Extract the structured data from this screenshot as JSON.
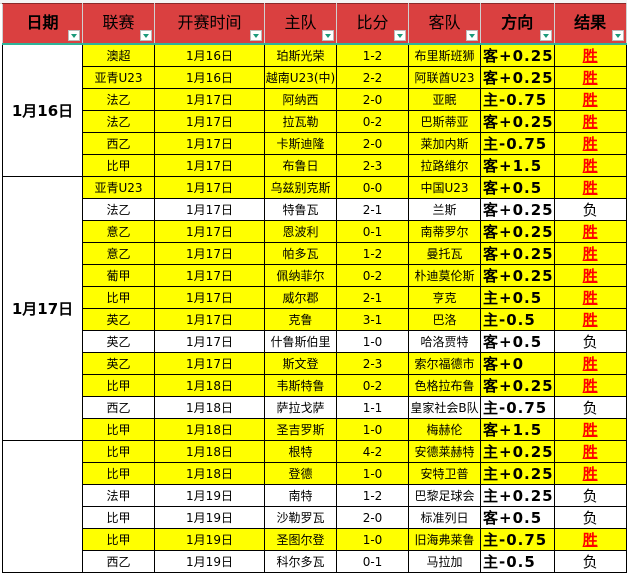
{
  "headers": [
    "日期",
    "联赛",
    "开赛时间",
    "主队",
    "比分",
    "客队",
    "方向",
    "结果"
  ],
  "groups": [
    {
      "date": "1月16日",
      "rows": [
        [
          "澳超",
          "1月16日",
          "珀斯光荣",
          "1-2",
          "布里斯班狮",
          "客+0.25",
          "胜"
        ],
        [
          "亚青U23",
          "1月16日",
          "越南U23(中)",
          "2-2",
          "阿联酋U23",
          "客+0.25",
          "胜"
        ],
        [
          "法乙",
          "1月17日",
          "阿纳西",
          "2-0",
          "亚眠",
          "主-0.75",
          "胜"
        ],
        [
          "法乙",
          "1月17日",
          "拉瓦勒",
          "0-2",
          "巴斯蒂亚",
          "客+0.25",
          "胜"
        ],
        [
          "西乙",
          "1月17日",
          "卡斯迪隆",
          "2-0",
          "莱加内斯",
          "主-0.75",
          "胜"
        ],
        [
          "比甲",
          "1月17日",
          "布鲁日",
          "2-3",
          "拉路维尔",
          "客+1.5",
          "胜"
        ]
      ]
    },
    {
      "date": "1月17日",
      "rows": [
        [
          "亚青U23",
          "1月17日",
          "乌兹别克斯",
          "0-0",
          "中国U23",
          "客+0.5",
          "胜"
        ],
        [
          "法乙",
          "1月17日",
          "特鲁瓦",
          "2-1",
          "兰斯",
          "客+0.25",
          "负"
        ],
        [
          "意乙",
          "1月17日",
          "恩波利",
          "0-1",
          "南蒂罗尔",
          "客+0.25",
          "胜"
        ],
        [
          "意乙",
          "1月17日",
          "帕多瓦",
          "1-2",
          "曼托瓦",
          "客+0.25",
          "胜"
        ],
        [
          "葡甲",
          "1月17日",
          "佩纳菲尔",
          "0-2",
          "朴迪莫伦斯",
          "客+0.25",
          "胜"
        ],
        [
          "比甲",
          "1月17日",
          "威尔郡",
          "2-1",
          "亨克",
          "主+0.5",
          "胜"
        ],
        [
          "英乙",
          "1月17日",
          "克鲁",
          "3-1",
          "巴洛",
          "主-0.5",
          "胜"
        ],
        [
          "英乙",
          "1月17日",
          "什鲁斯伯里",
          "1-0",
          "哈洛贾特",
          "客+0.5",
          "负"
        ],
        [
          "英乙",
          "1月17日",
          "斯文登",
          "2-3",
          "索尔福德市",
          "客+0",
          "胜"
        ],
        [
          "比甲",
          "1月18日",
          "韦斯特鲁",
          "0-2",
          "色格拉布鲁",
          "客+0.25",
          "胜"
        ],
        [
          "西乙",
          "1月18日",
          "萨拉戈萨",
          "1-1",
          "皇家社会B队",
          "主-0.75",
          "负"
        ],
        [
          "比甲",
          "1月18日",
          "圣吉罗斯",
          "1-0",
          "梅赫伦",
          "客+1.5",
          "胜"
        ]
      ]
    },
    {
      "date": "",
      "rows": [
        [
          "比甲",
          "1月18日",
          "根特",
          "4-2",
          "安德莱赫特",
          "主+0.25",
          "胜"
        ],
        [
          "比甲",
          "1月18日",
          "登德",
          "1-0",
          "安特卫普",
          "主+0.25",
          "胜"
        ],
        [
          "法甲",
          "1月19日",
          "南特",
          "1-2",
          "巴黎足球会",
          "主+0.25",
          "负"
        ],
        [
          "比甲",
          "1月19日",
          "沙勒罗瓦",
          "2-0",
          "标准列日",
          "客+0.5",
          "负"
        ],
        [
          "比甲",
          "1月19日",
          "圣图尔登",
          "1-0",
          "旧海弗莱鲁",
          "主-0.75",
          "胜"
        ],
        [
          "西乙",
          "1月19日",
          "科尔多瓦",
          "0-1",
          "马拉加",
          "主-0.5",
          "负"
        ]
      ]
    }
  ],
  "colors": {
    "header": "#DA4040",
    "win_row": "#FFFF00",
    "win_text": "#FF0000",
    "lose_row": "#FFFFFF"
  },
  "win_label": "胜"
}
